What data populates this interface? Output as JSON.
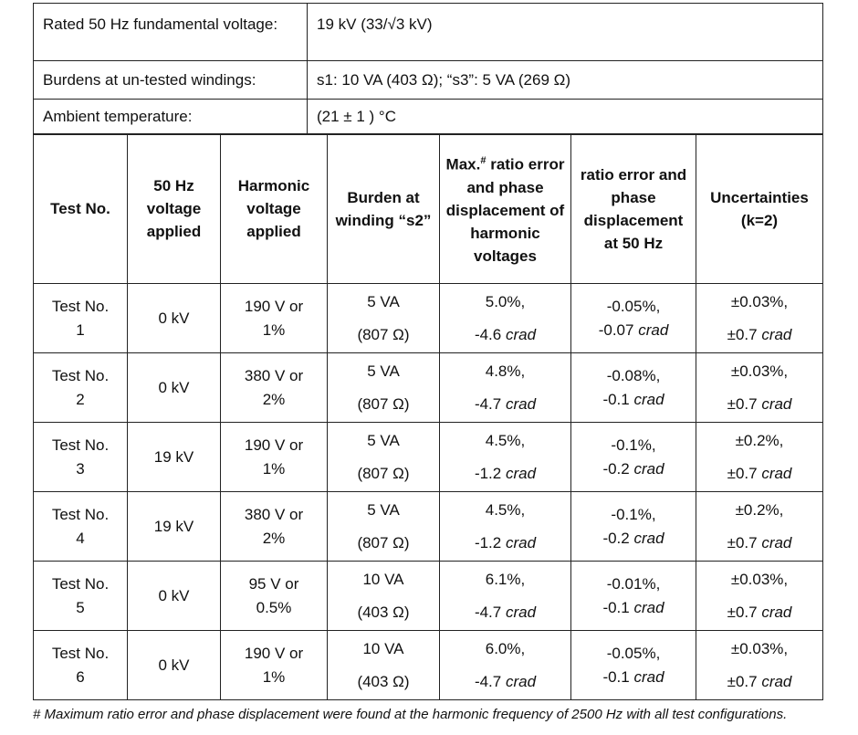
{
  "info_rows": [
    {
      "label": "Rated 50 Hz fundamental voltage:",
      "value": "19 kV (33/√3 kV)"
    },
    {
      "label": "Burdens at un-tested windings:",
      "value": "s1: 10 VA (403 Ω); “s3”: 5 VA (269 Ω)"
    },
    {
      "label": "Ambient temperature:",
      "value": "(21 ± 1 ) °C"
    }
  ],
  "table": {
    "headers": [
      "Test No.",
      "50 Hz voltage applied",
      "Harmonic voltage applied",
      "Burden at winding “s2”",
      {
        "pre": "Max.",
        "sup": "#",
        "post": "ratio error and phase displacement of harmonic voltages"
      },
      "ratio error and phase displacement at 50 Hz",
      "Uncertainties (k=2)"
    ],
    "rows": [
      [
        [
          "Test No.",
          "1"
        ],
        [
          "0 kV"
        ],
        [
          "190 V or",
          "1%"
        ],
        [
          "5 VA",
          "(807 Ω)"
        ],
        [
          "5.0%,",
          {
            "value": "-4.6",
            "unit": "crad"
          }
        ],
        [
          "-0.05%,",
          {
            "value": "-0.07",
            "unit": "crad"
          }
        ],
        [
          "±0.03%,",
          {
            "value": "±0.7",
            "unit": "crad"
          }
        ]
      ],
      [
        [
          "Test No.",
          "2"
        ],
        [
          "0 kV"
        ],
        [
          "380 V or",
          "2%"
        ],
        [
          "5 VA",
          "(807 Ω)"
        ],
        [
          "4.8%,",
          {
            "value": "-4.7",
            "unit": "crad"
          }
        ],
        [
          "-0.08%,",
          {
            "value": "-0.1",
            "unit": "crad"
          }
        ],
        [
          "±0.03%,",
          {
            "value": "±0.7",
            "unit": "crad"
          }
        ]
      ],
      [
        [
          "Test No.",
          "3"
        ],
        [
          "19 kV"
        ],
        [
          "190 V or",
          "1%"
        ],
        [
          "5 VA",
          "(807 Ω)"
        ],
        [
          "4.5%,",
          {
            "value": "-1.2",
            "unit": "crad"
          }
        ],
        [
          "-0.1%,",
          {
            "value": "-0.2",
            "unit": "crad"
          }
        ],
        [
          "±0.2%,",
          {
            "value": "±0.7",
            "unit": "crad"
          }
        ]
      ],
      [
        [
          "Test No.",
          "4"
        ],
        [
          "19 kV"
        ],
        [
          "380 V or",
          "2%"
        ],
        [
          "5 VA",
          "(807 Ω)"
        ],
        [
          "4.5%,",
          {
            "value": "-1.2",
            "unit": "crad"
          }
        ],
        [
          "-0.1%,",
          {
            "value": "-0.2",
            "unit": "crad"
          }
        ],
        [
          "±0.2%,",
          {
            "value": "±0.7",
            "unit": "crad"
          }
        ]
      ],
      [
        [
          "Test No.",
          "5"
        ],
        [
          "0 kV"
        ],
        [
          "95 V or",
          "0.5%"
        ],
        [
          "10 VA",
          "(403 Ω)"
        ],
        [
          "6.1%,",
          {
            "value": "-4.7",
            "unit": "crad"
          }
        ],
        [
          "-0.01%,",
          {
            "value": "-0.1",
            "unit": "crad"
          }
        ],
        [
          "±0.03%,",
          {
            "value": "±0.7",
            "unit": "crad"
          }
        ]
      ],
      [
        [
          "Test No.",
          "6"
        ],
        [
          "0 kV"
        ],
        [
          "190 V or",
          "1%"
        ],
        [
          "10 VA",
          "(403 Ω)"
        ],
        [
          "6.0%,",
          {
            "value": "-4.7",
            "unit": "crad"
          }
        ],
        [
          "-0.05%,",
          {
            "value": "-0.1",
            "unit": "crad"
          }
        ],
        [
          "±0.03%,",
          {
            "value": "±0.7",
            "unit": "crad"
          }
        ]
      ]
    ]
  },
  "footnote": "# Maximum ratio error and phase displacement were found at the harmonic frequency of 2500 Hz with all test configurations."
}
